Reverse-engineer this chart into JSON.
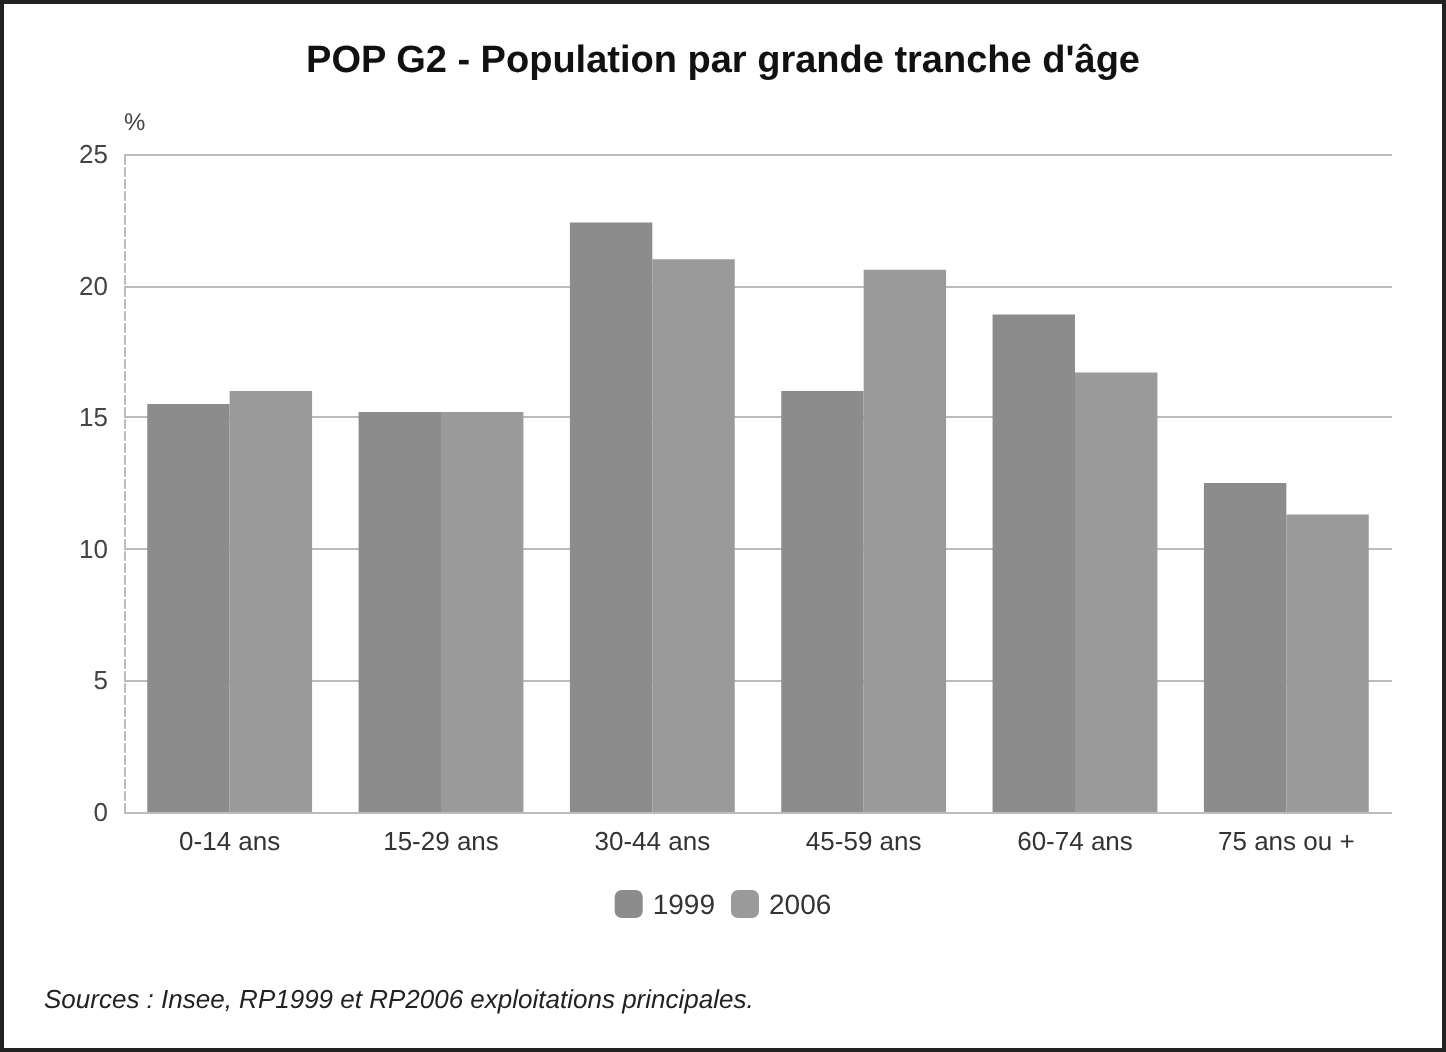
{
  "chart_data": {
    "type": "bar",
    "title": "POP G2 - Population par grande tranche d'âge",
    "ylabel": "%",
    "categories": [
      "0-14 ans",
      "15-29 ans",
      "30-44 ans",
      "45-59 ans",
      "60-74 ans",
      "75 ans ou +"
    ],
    "series": [
      {
        "name": "1999",
        "color": "#8c8c8c",
        "values": [
          15.5,
          15.2,
          22.4,
          16.0,
          18.9,
          12.5
        ]
      },
      {
        "name": "2006",
        "color": "#9a9a9a",
        "values": [
          16.0,
          15.2,
          21.0,
          20.6,
          16.7,
          11.3
        ]
      }
    ],
    "ylim": [
      0,
      25
    ],
    "yticks": [
      0,
      5,
      10,
      15,
      20,
      25
    ],
    "grid": "y",
    "legend": "bottom",
    "annotations": [
      "Sources : Insee, RP1999 et RP2006 exploitations principales."
    ]
  }
}
